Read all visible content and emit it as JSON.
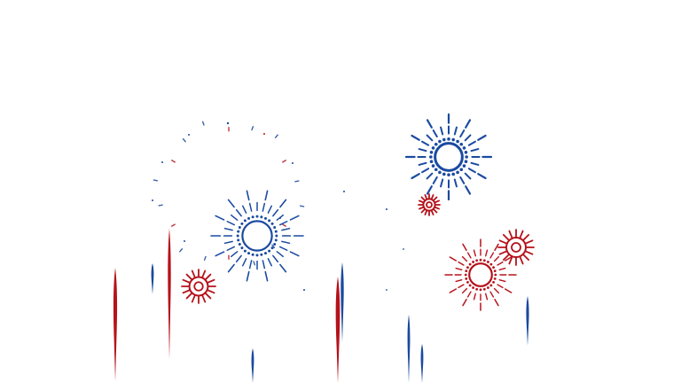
{
  "scene": {
    "description_label": "",
    "colors": {
      "background": "#ffffff",
      "red": "#b5121b",
      "blue": "#1a4aa0"
    },
    "icons": [
      "firework-burst-icon",
      "firework-rocket-icon",
      "spark-icon"
    ]
  }
}
